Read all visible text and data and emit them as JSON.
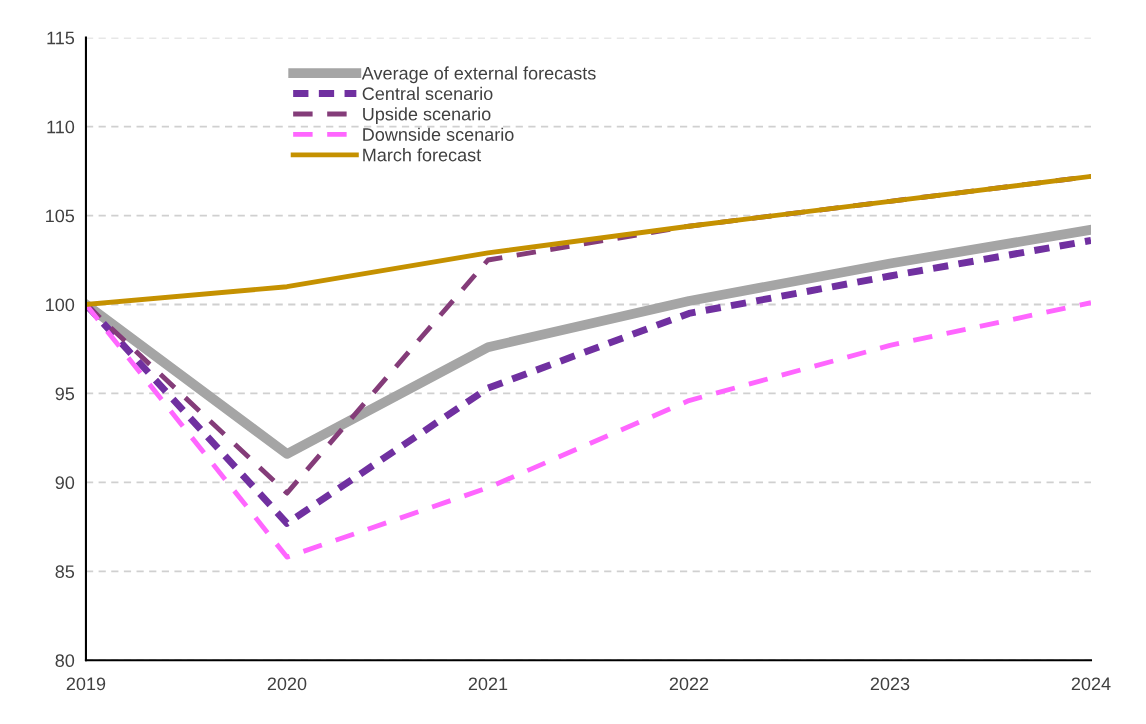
{
  "chart_data": {
    "type": "line",
    "x": [
      2019,
      2020,
      2021,
      2022,
      2023,
      2024
    ],
    "xlim": [
      2019,
      2024
    ],
    "xticks": [
      2019,
      2020,
      2021,
      2022,
      2023,
      2024
    ],
    "ylim": [
      80,
      115
    ],
    "yticks": [
      80,
      85,
      90,
      95,
      100,
      105,
      110,
      115
    ],
    "grid": "y",
    "legend": "top left",
    "series": [
      {
        "name": "Average of external forecasts",
        "color": "#a5a5a5",
        "line_style": "solid",
        "values": [
          100,
          91.6,
          97.6,
          100.2,
          102.3,
          104.2
        ]
      },
      {
        "name": "Central scenario",
        "color": "#7030a0",
        "line_style": "dashed",
        "values": [
          100,
          87.7,
          95.3,
          99.5,
          101.6,
          103.6
        ]
      },
      {
        "name": "Upside scenario",
        "color": "#843c79",
        "line_style": "dashed",
        "values": [
          100,
          89.4,
          102.5,
          104.4,
          105.8,
          107.2
        ]
      },
      {
        "name": "Downside scenario",
        "color": "#ff66ff",
        "line_style": "dashed",
        "values": [
          100,
          85.8,
          89.7,
          94.6,
          97.7,
          100.1
        ]
      },
      {
        "name": "March forecast",
        "color": "#c59100",
        "line_style": "solid",
        "values": [
          100,
          101.0,
          102.9,
          104.4,
          105.8,
          107.2
        ]
      }
    ]
  }
}
